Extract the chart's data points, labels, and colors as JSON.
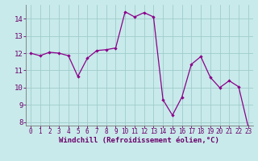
{
  "x": [
    0,
    1,
    2,
    3,
    4,
    5,
    6,
    7,
    8,
    9,
    10,
    11,
    12,
    13,
    14,
    15,
    16,
    17,
    18,
    19,
    20,
    21,
    22,
    23
  ],
  "y": [
    12.0,
    11.85,
    12.05,
    12.0,
    11.85,
    10.65,
    11.7,
    12.15,
    12.2,
    12.3,
    14.4,
    14.1,
    14.35,
    14.1,
    9.3,
    8.4,
    9.45,
    11.35,
    11.8,
    10.6,
    10.0,
    10.4,
    10.05,
    7.75
  ],
  "line_color": "#8b008b",
  "marker": "D",
  "marker_size": 2.2,
  "linewidth": 0.9,
  "xlabel": "Windchill (Refroidissement éolien,°C)",
  "xlim": [
    -0.5,
    23.5
  ],
  "ylim": [
    7.8,
    14.8
  ],
  "yticks": [
    8,
    9,
    10,
    11,
    12,
    13,
    14
  ],
  "xticks": [
    0,
    1,
    2,
    3,
    4,
    5,
    6,
    7,
    8,
    9,
    10,
    11,
    12,
    13,
    14,
    15,
    16,
    17,
    18,
    19,
    20,
    21,
    22,
    23
  ],
  "bg_color": "#c8eaea",
  "grid_color": "#a0cccc",
  "label_color": "#6b006b",
  "tick_color": "#6b006b",
  "xlabel_fontsize": 6.5,
  "ytick_fontsize": 6.5,
  "xtick_fontsize": 5.5
}
